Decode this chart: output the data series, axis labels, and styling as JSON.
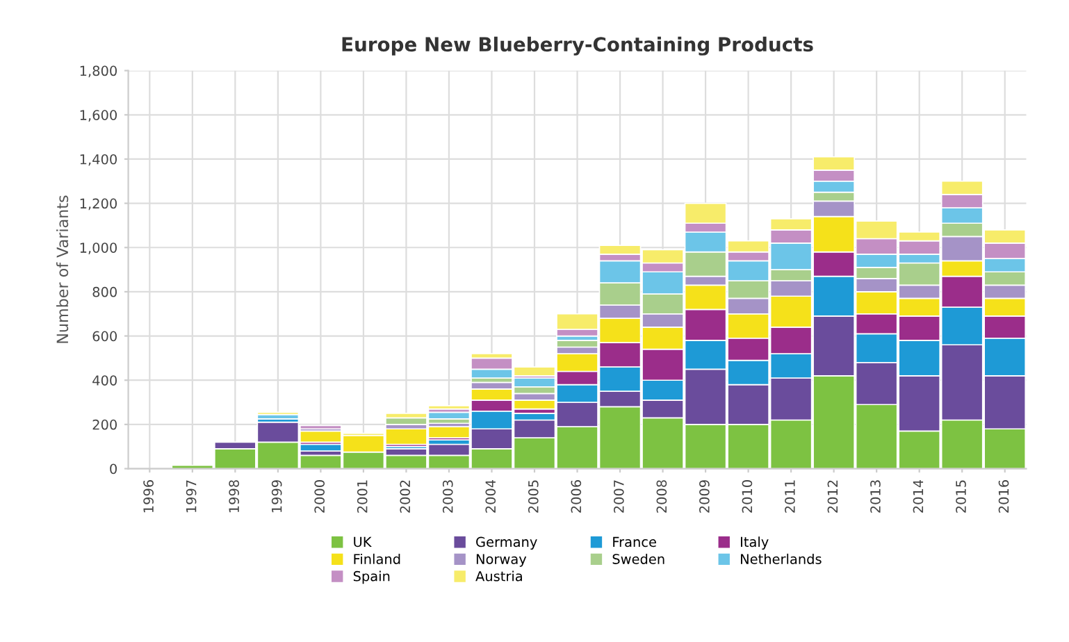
{
  "chart_data": {
    "type": "bar",
    "stacked": true,
    "title": "Europe New Blueberry-Containing Products",
    "ylabel": "Number of Variants",
    "categories": [
      "1996",
      "1997",
      "1998",
      "1999",
      "2000",
      "2001",
      "2002",
      "2003",
      "2004",
      "2005",
      "2006",
      "2007",
      "2008",
      "2009",
      "2010",
      "2011",
      "2012",
      "2013",
      "2014",
      "2015",
      "2016"
    ],
    "series": [
      {
        "name": "UK",
        "color": "#7dc242",
        "values": [
          0,
          15,
          90,
          120,
          60,
          75,
          60,
          60,
          90,
          140,
          190,
          280,
          230,
          200,
          200,
          220,
          420,
          290,
          170,
          220,
          180
        ]
      },
      {
        "name": "Germany",
        "color": "#6a4c9c",
        "values": [
          0,
          0,
          30,
          90,
          20,
          0,
          30,
          50,
          90,
          80,
          110,
          70,
          80,
          250,
          180,
          190,
          270,
          190,
          250,
          340,
          240
        ]
      },
      {
        "name": "France",
        "color": "#1e9ad6",
        "values": [
          0,
          0,
          0,
          15,
          30,
          0,
          10,
          20,
          80,
          30,
          80,
          110,
          90,
          130,
          110,
          110,
          180,
          130,
          160,
          170,
          170
        ]
      },
      {
        "name": "Italy",
        "color": "#9b2d8a",
        "values": [
          0,
          0,
          0,
          0,
          10,
          0,
          10,
          10,
          50,
          20,
          60,
          110,
          140,
          140,
          100,
          120,
          110,
          90,
          110,
          140,
          100
        ]
      },
      {
        "name": "Finland",
        "color": "#f5e11a",
        "values": [
          0,
          0,
          0,
          0,
          50,
          75,
          70,
          50,
          50,
          40,
          80,
          110,
          100,
          110,
          110,
          140,
          160,
          100,
          80,
          70,
          80
        ]
      },
      {
        "name": "Norway",
        "color": "#a593c7",
        "values": [
          0,
          0,
          0,
          0,
          10,
          0,
          20,
          15,
          30,
          30,
          30,
          60,
          60,
          40,
          70,
          70,
          70,
          60,
          60,
          110,
          60
        ]
      },
      {
        "name": "Sweden",
        "color": "#a9cf8c",
        "values": [
          0,
          0,
          0,
          0,
          0,
          0,
          30,
          20,
          20,
          30,
          30,
          100,
          90,
          110,
          80,
          50,
          40,
          50,
          100,
          60,
          60
        ]
      },
      {
        "name": "Netherlands",
        "color": "#6cc5e8",
        "values": [
          0,
          0,
          0,
          20,
          0,
          0,
          0,
          30,
          40,
          40,
          20,
          100,
          100,
          90,
          90,
          120,
          50,
          60,
          40,
          70,
          60
        ]
      },
      {
        "name": "Spain",
        "color": "#c48fc4",
        "values": [
          0,
          0,
          0,
          0,
          15,
          0,
          0,
          15,
          50,
          10,
          30,
          30,
          40,
          40,
          40,
          60,
          50,
          70,
          60,
          60,
          70
        ]
      },
      {
        "name": "Austria",
        "color": "#f7ec6a",
        "values": [
          0,
          0,
          0,
          10,
          0,
          10,
          20,
          15,
          20,
          40,
          70,
          40,
          60,
          90,
          50,
          50,
          60,
          80,
          40,
          60,
          60
        ]
      }
    ],
    "ylim": [
      0,
      1800
    ],
    "yticks": [
      0,
      {
        "value": 200,
        "label": "200"
      },
      {
        "value": 400,
        "label": "400"
      },
      {
        "value": 600,
        "label": "600"
      },
      {
        "value": 800,
        "label": "800"
      },
      {
        "value": 1000,
        "label": "1,000"
      },
      {
        "value": 1200,
        "label": "1,200"
      },
      {
        "value": 1400,
        "label": "1,400"
      },
      {
        "value": 1600,
        "label": "1,600"
      },
      {
        "value": 1800,
        "label": "1,800"
      }
    ],
    "grid": true,
    "legend": "bottom"
  }
}
